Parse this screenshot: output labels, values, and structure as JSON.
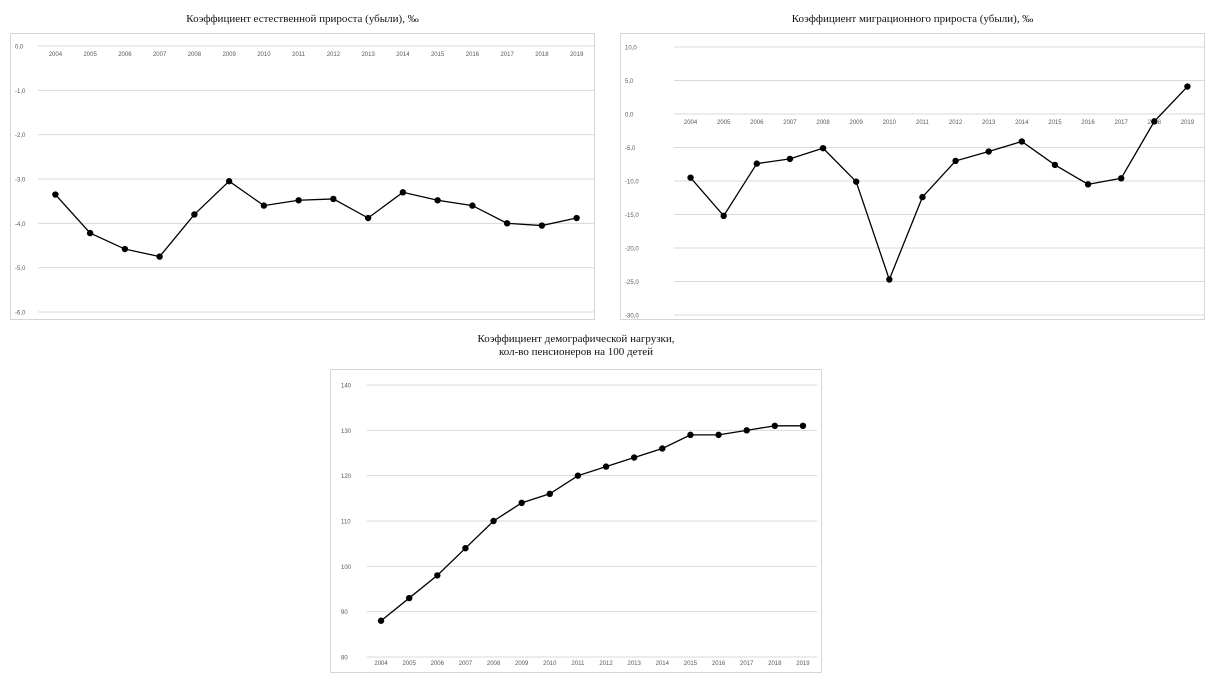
{
  "chart_data": [
    {
      "type": "line",
      "title": "Коэффициент естественной прироста (убыли), ‰",
      "categories": [
        "2004",
        "2005",
        "2006",
        "2007",
        "2008",
        "2009",
        "2010",
        "2011",
        "2012",
        "2013",
        "2014",
        "2015",
        "2016",
        "2017",
        "2018",
        "2019"
      ],
      "values": [
        -3.35,
        -4.22,
        -4.58,
        -4.75,
        -3.8,
        -3.05,
        -3.6,
        -3.48,
        -3.45,
        -3.88,
        -3.3,
        -3.48,
        -3.6,
        -4.0,
        -4.05,
        -3.88
      ],
      "ylim": [
        -6,
        0
      ],
      "yticks": [
        "-6,0",
        "-5,0",
        "-4,0",
        "-3,0",
        "-2,0",
        "-1,0",
        "0,0"
      ],
      "grid": true,
      "legend": "none",
      "line_color": "#000000",
      "grid_color": "#d9d9d9"
    },
    {
      "type": "line",
      "title": "Коэффициент миграционного прироста (убыли), ‰",
      "categories": [
        "2004",
        "2005",
        "2006",
        "2007",
        "2008",
        "2009",
        "2010",
        "2011",
        "2012",
        "2013",
        "2014",
        "2015",
        "2016",
        "2017",
        "2018",
        "2019"
      ],
      "values": [
        -9.5,
        -15.2,
        -7.4,
        -6.7,
        -5.1,
        -10.1,
        -24.7,
        -12.4,
        -7.0,
        -5.6,
        -4.1,
        -7.6,
        -10.5,
        -9.6,
        -1.1,
        4.1
      ],
      "ylim": [
        -30,
        10
      ],
      "yticks": [
        "-30,0",
        "-25,0",
        "-20,0",
        "-15,0",
        "-10,0",
        "-5,0",
        "0,0",
        "5,0",
        "10,0"
      ],
      "grid": true,
      "legend": "none",
      "line_color": "#000000",
      "grid_color": "#d9d9d9"
    },
    {
      "type": "line",
      "title": "Коэффициент демографической нагрузки,",
      "subtitle": "кол-во пенсионеров на 100 детей",
      "categories": [
        "2004",
        "2005",
        "2006",
        "2007",
        "2008",
        "2009",
        "2010",
        "2011",
        "2012",
        "2013",
        "2014",
        "2015",
        "2016",
        "2017",
        "2018",
        "2019"
      ],
      "values": [
        88,
        93,
        98,
        104,
        110,
        114,
        116,
        120,
        122,
        124,
        126,
        129,
        129,
        130,
        131,
        131
      ],
      "ylim": [
        80,
        140
      ],
      "yticks": [
        "80",
        "90",
        "100",
        "110",
        "120",
        "130",
        "140"
      ],
      "grid": true,
      "legend": "none",
      "line_color": "#000000",
      "grid_color": "#d9d9d9"
    }
  ]
}
